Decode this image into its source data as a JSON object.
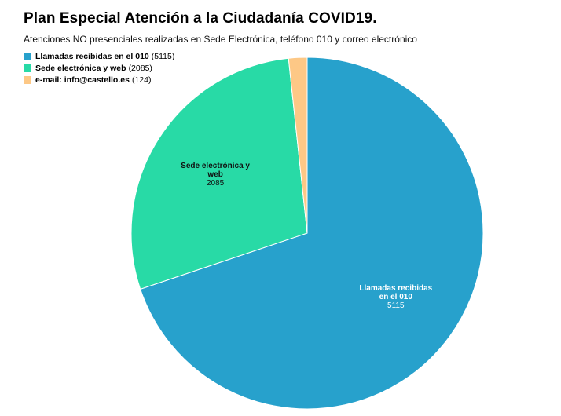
{
  "title": "Plan Especial Atención a la Ciudadanía COVID19.",
  "subtitle": "Atenciones NO presenciales realizadas en Sede Electrónica, teléfono 010 y correo electrónico",
  "chart_data": {
    "type": "pie",
    "legend_position": "top-left",
    "slices": [
      {
        "name": "Llamadas recibidas en el 010",
        "value": 5115,
        "legend_count": "(5115)",
        "label_lines": [
          "Llamadas recibidas",
          "en el 010"
        ],
        "value_label": "5115",
        "color": "#27a1cc",
        "label_color": "#ffffff"
      },
      {
        "name": "Sede electrónica y web",
        "value": 2085,
        "legend_count": "(2085)",
        "label_lines": [
          "Sede electrónica y",
          "web"
        ],
        "value_label": "2085",
        "color": "#28daa6",
        "label_color": "#111111"
      },
      {
        "name": "e-mail: info@castello.es",
        "value": 124,
        "legend_count": "(124)",
        "label_lines": [],
        "value_label": "",
        "color": "#fdc886",
        "label_color": "#111111"
      }
    ]
  }
}
